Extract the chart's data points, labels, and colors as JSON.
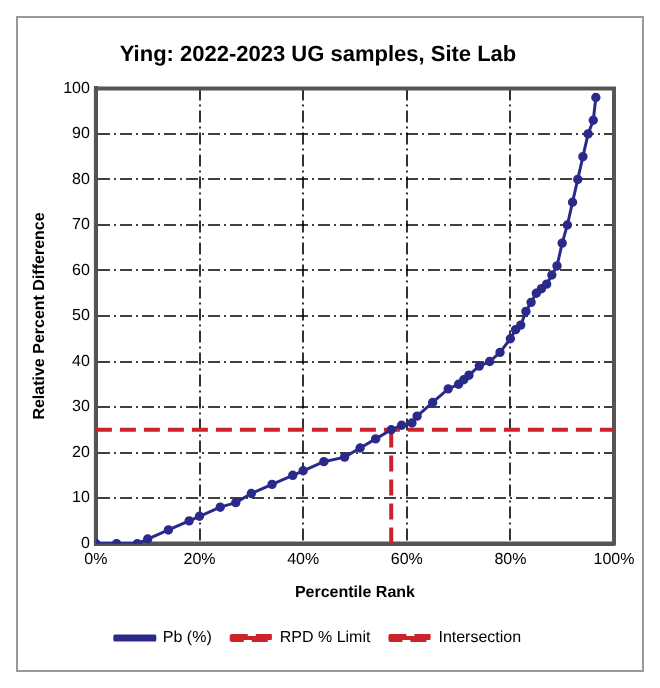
{
  "chart_data": {
    "type": "line",
    "title": "Ying: 2022-2023 UG samples, Site Lab",
    "xlabel": "Percentile Rank",
    "ylabel": "Relative Percent Difference",
    "xlim": [
      0,
      100
    ],
    "xticks": [
      {
        "value": 0,
        "label": "0%"
      },
      {
        "value": 20,
        "label": "20%"
      },
      {
        "value": 40,
        "label": "40%"
      },
      {
        "value": 60,
        "label": "60%"
      },
      {
        "value": 80,
        "label": "80%"
      },
      {
        "value": 100,
        "label": "100%"
      }
    ],
    "ylim": [
      0,
      100
    ],
    "yticks": [
      0,
      10,
      20,
      30,
      40,
      50,
      60,
      70,
      80,
      90,
      100
    ],
    "grid": true,
    "legend": "bottom",
    "series": [
      {
        "name": "Pb (%)",
        "color": "#2b2a8c",
        "marker": "circle",
        "line_style": "solid",
        "x": [
          0,
          4,
          8,
          10,
          14,
          18,
          20,
          24,
          27,
          30,
          34,
          38,
          40,
          44,
          48,
          51,
          54,
          57,
          59,
          61,
          62,
          65,
          68,
          70,
          71,
          72,
          74,
          76,
          78,
          80,
          81,
          82,
          83,
          84,
          85,
          86,
          87,
          88,
          89,
          90,
          91,
          92,
          93,
          94,
          95,
          96,
          96.5
        ],
        "values": [
          0,
          0,
          0,
          1,
          3,
          5,
          6,
          8,
          9,
          11,
          13,
          15,
          16,
          18,
          19,
          21,
          23,
          25,
          26,
          26.5,
          28,
          31,
          34,
          35,
          36,
          37,
          39,
          40,
          42,
          45,
          47,
          48,
          51,
          53,
          55,
          56,
          57,
          59,
          61,
          66,
          70,
          75,
          80,
          85,
          90,
          93,
          98
        ]
      },
      {
        "name": "RPD % Limit",
        "color": "#cc2229",
        "marker": "none",
        "line_style": "dashed",
        "x": [
          0,
          100
        ],
        "values": [
          25,
          25
        ]
      },
      {
        "name": "Intersection",
        "color": "#cc2229",
        "marker": "none",
        "line_style": "dashed",
        "x": [
          57,
          57
        ],
        "values": [
          0,
          25
        ]
      }
    ]
  }
}
